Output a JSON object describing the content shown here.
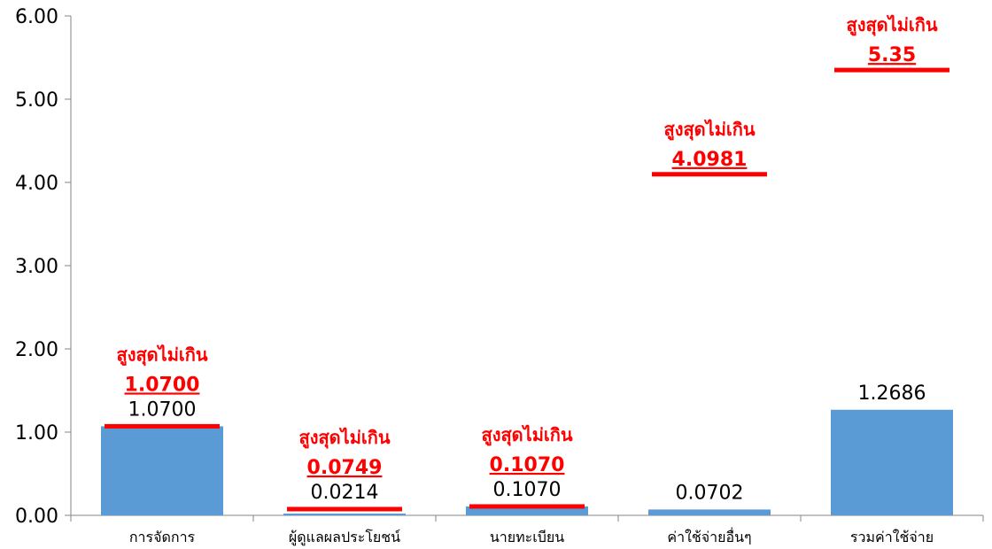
{
  "chart_data": {
    "type": "bar",
    "categories": [
      "การจัดการ",
      "ผู้ดูแลผลประโยชน์",
      "นายทะเบียน",
      "ค่าใช้จ่ายอื่นๆ",
      "รวมค่าใช้จ่าย"
    ],
    "values": [
      1.07,
      0.0214,
      0.107,
      0.0702,
      1.2686
    ],
    "value_labels": [
      "1.0700",
      "0.0214",
      "0.1070",
      "0.0702",
      "1.2686"
    ],
    "ylim": [
      0,
      6
    ],
    "yticks": [
      "0.00",
      "1.00",
      "2.00",
      "3.00",
      "4.00",
      "5.00",
      "6.00"
    ],
    "ytick_values": [
      0,
      1,
      2,
      3,
      4,
      5,
      6
    ],
    "bar_color": "#5b9bd5",
    "limit_color": "#ff0000",
    "limits": [
      {
        "category_index": 0,
        "value": 1.07,
        "caption": "สูงสุดไม่เกิน",
        "value_label": "1.0700"
      },
      {
        "category_index": 1,
        "value": 0.0749,
        "caption": "สูงสุดไม่เกิน",
        "value_label": "0.0749"
      },
      {
        "category_index": 2,
        "value": 0.107,
        "caption": "สูงสุดไม่เกิน",
        "value_label": "0.1070"
      },
      {
        "category_index": 3,
        "value": 4.0981,
        "caption": "สูงสุดไม่เกิน",
        "value_label": "4.0981"
      },
      {
        "category_index": 4,
        "value": 5.35,
        "caption": "สูงสุดไม่เกิน",
        "value_label": "5.35"
      }
    ],
    "grid": false,
    "legend": "none"
  }
}
